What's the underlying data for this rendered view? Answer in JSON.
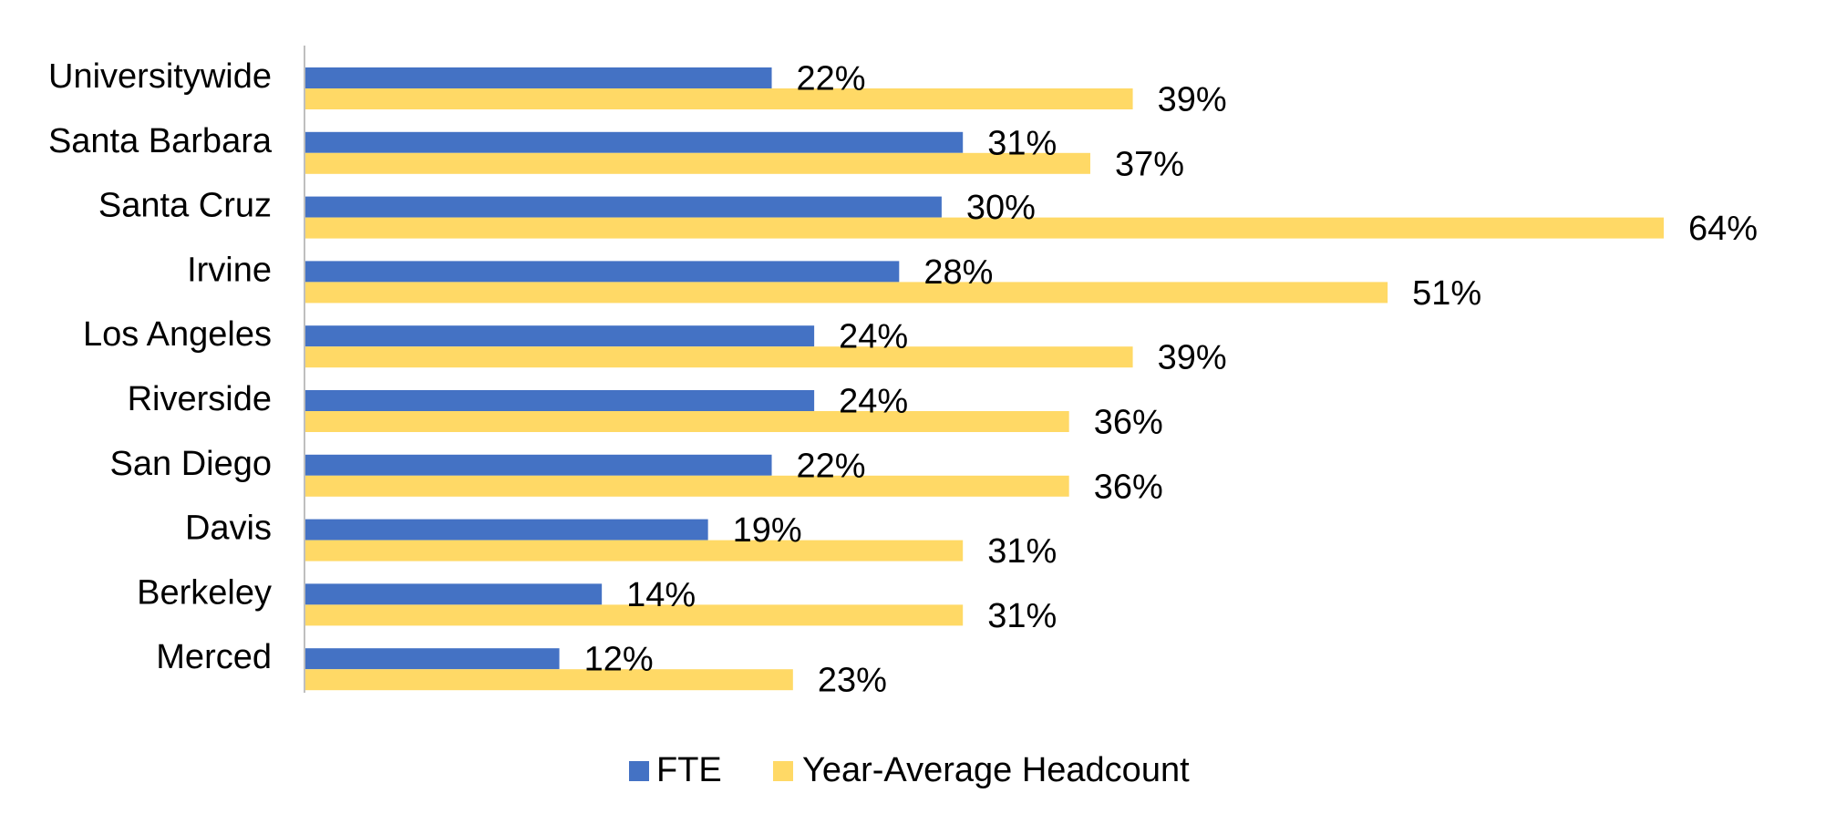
{
  "chart_data": {
    "type": "bar",
    "orientation": "horizontal",
    "categories": [
      "Universitywide",
      "Santa Barbara",
      "Santa Cruz",
      "Irvine",
      "Los Angeles",
      "Riverside",
      "San Diego",
      "Davis",
      "Berkeley",
      "Merced"
    ],
    "series": [
      {
        "name": "FTE",
        "color": "#4472C4",
        "values": [
          22,
          31,
          30,
          28,
          24,
          24,
          22,
          19,
          14,
          12
        ],
        "labels": [
          "22%",
          "31%",
          "30%",
          "28%",
          "24%",
          "24%",
          "22%",
          "19%",
          "14%",
          "12%"
        ]
      },
      {
        "name": "Year-Average Headcount",
        "color": "#FFD966",
        "values": [
          39,
          37,
          64,
          51,
          39,
          36,
          36,
          31,
          31,
          23
        ],
        "labels": [
          "39%",
          "37%",
          "64%",
          "51%",
          "39%",
          "36%",
          "36%",
          "31%",
          "31%",
          "23%"
        ]
      }
    ],
    "xlim": [
      0,
      64
    ],
    "value_unit": "%",
    "grid": false,
    "legend_position": "bottom"
  }
}
